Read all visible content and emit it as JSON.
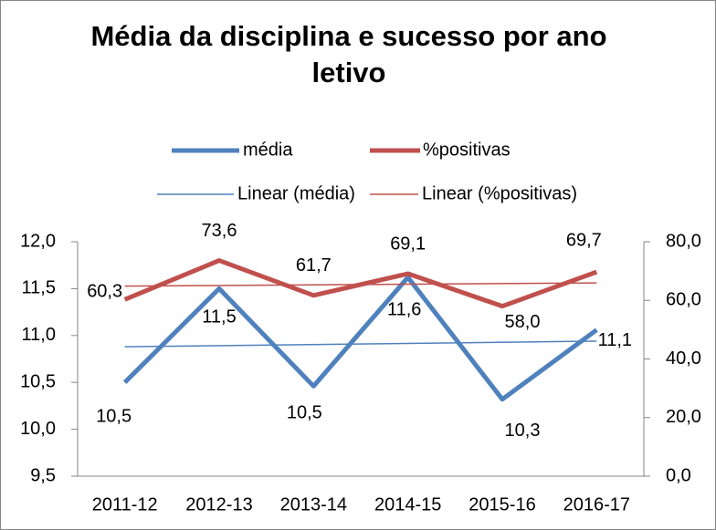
{
  "chart_data": {
    "type": "line",
    "title": "Média da disciplina e sucesso por ano letivo",
    "categories": [
      "2011-12",
      "2012-13",
      "2013-14",
      "2014-15",
      "2015-16",
      "2016-17"
    ],
    "series": [
      {
        "name": "média",
        "color": "#4f81bd",
        "values": [
          10.5,
          11.5,
          10.46,
          11.62,
          10.32,
          11.06
        ],
        "value_labels": [
          "10,5",
          "11,5",
          "10,5",
          "11,6",
          "10,3",
          "11,1"
        ],
        "trendline": {
          "name": "Linear (média)",
          "color": "#4f81bd"
        }
      },
      {
        "name": "%positivas",
        "color": "#c0504d",
        "axis": "y2",
        "values": [
          60.3,
          73.6,
          61.7,
          69.1,
          58.0,
          69.7
        ],
        "value_labels": [
          "60,3",
          "73,6",
          "61,7",
          "69,1",
          "58,0",
          "69,7"
        ],
        "trendline": {
          "name": "Linear (%positivas)",
          "color": "#c0504d"
        }
      }
    ],
    "ylim": [
      9.5,
      12.0
    ],
    "yticks": [
      {
        "value": 9.5,
        "label": "9,5"
      },
      {
        "value": 10.0,
        "label": "10,0"
      },
      {
        "value": 10.5,
        "label": "10,5"
      },
      {
        "value": 11.0,
        "label": "11,0"
      },
      {
        "value": 11.5,
        "label": "11,5"
      },
      {
        "value": 12.0,
        "label": "12,0"
      }
    ],
    "y2lim": [
      0,
      80
    ],
    "y2ticks": [
      {
        "value": 0,
        "label": "0,0"
      },
      {
        "value": 20,
        "label": "20,0"
      },
      {
        "value": 40,
        "label": "40,0"
      },
      {
        "value": 60,
        "label": "60,0"
      },
      {
        "value": 80,
        "label": "80,0"
      }
    ],
    "grid": false,
    "legend": "top"
  }
}
